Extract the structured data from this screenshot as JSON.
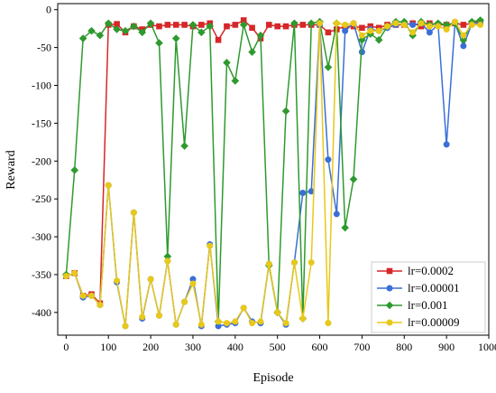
{
  "chart_data": {
    "type": "line",
    "xlabel": "Episode",
    "ylabel": "Reward",
    "xlim": [
      -20,
      1000
    ],
    "ylim": [
      -430,
      8
    ],
    "xticks": [
      0,
      100,
      200,
      300,
      400,
      500,
      600,
      700,
      800,
      900,
      1000
    ],
    "yticks": [
      0,
      -50,
      -100,
      -150,
      -200,
      -250,
      -300,
      -350,
      -400
    ],
    "grid": false,
    "legend_position": "lower-right",
    "x": [
      0,
      20,
      40,
      60,
      80,
      100,
      120,
      140,
      160,
      180,
      200,
      220,
      240,
      260,
      280,
      300,
      320,
      340,
      360,
      380,
      400,
      420,
      440,
      460,
      480,
      500,
      520,
      540,
      560,
      580,
      600,
      620,
      640,
      660,
      680,
      700,
      720,
      740,
      760,
      780,
      800,
      820,
      840,
      860,
      880,
      900,
      920,
      940,
      960,
      980
    ],
    "series": [
      {
        "name": "lr=0.0002",
        "color": "#d62728",
        "marker": "square",
        "values": [
          -352,
          -348,
          -378,
          -376,
          -388,
          -20,
          -19,
          -30,
          -22,
          -26,
          -20,
          -22,
          -20,
          -20,
          -20,
          -22,
          -20,
          -18,
          -40,
          -22,
          -20,
          -14,
          -24,
          -38,
          -20,
          -22,
          -22,
          -20,
          -20,
          -20,
          -20,
          -30,
          -26,
          -22,
          -22,
          -24,
          -22,
          -24,
          -20,
          -20,
          -20,
          -18,
          -22,
          -18,
          -20,
          -20,
          -18,
          -20,
          -18,
          -16
        ]
      },
      {
        "name": "lr=0.00001",
        "color": "#3a6fd8",
        "marker": "circle",
        "values": [
          -352,
          -348,
          -380,
          -378,
          -390,
          -232,
          -360,
          -418,
          -268,
          -408,
          -356,
          -404,
          -332,
          -416,
          -386,
          -356,
          -418,
          -310,
          -418,
          -416,
          -414,
          -394,
          -412,
          -414,
          -336,
          -400,
          -416,
          -334,
          -242,
          -240,
          -20,
          -198,
          -270,
          -28,
          -18,
          -56,
          -26,
          -28,
          -24,
          -20,
          -18,
          -20,
          -18,
          -30,
          -20,
          -178,
          -18,
          -48,
          -18,
          -18
        ]
      },
      {
        "name": "lr=0.001",
        "color": "#2e9a2e",
        "marker": "diamond",
        "values": [
          -350,
          -212,
          -38,
          -28,
          -34,
          -18,
          -26,
          -28,
          -22,
          -30,
          -18,
          -44,
          -326,
          -38,
          -180,
          -20,
          -30,
          -22,
          -412,
          -70,
          -94,
          -20,
          -56,
          -34,
          -338,
          -400,
          -134,
          -18,
          -408,
          -18,
          -16,
          -76,
          -18,
          -288,
          -224,
          -40,
          -32,
          -40,
          -22,
          -16,
          -16,
          -34,
          -16,
          -20,
          -18,
          -20,
          -18,
          -40,
          -16,
          -14
        ]
      },
      {
        "name": "lr=0.00009",
        "color": "#e8c81a",
        "marker": "circle",
        "values": [
          -352,
          -348,
          -378,
          -378,
          -390,
          -232,
          -358,
          -418,
          -268,
          -406,
          -356,
          -404,
          -332,
          -416,
          -386,
          -362,
          -416,
          -312,
          -412,
          -414,
          -412,
          -394,
          -414,
          -412,
          -336,
          -400,
          -414,
          -334,
          -408,
          -334,
          -18,
          -414,
          -18,
          -20,
          -18,
          -34,
          -28,
          -28,
          -22,
          -18,
          -20,
          -30,
          -18,
          -22,
          -22,
          -26,
          -16,
          -34,
          -20,
          -20
        ]
      }
    ]
  }
}
